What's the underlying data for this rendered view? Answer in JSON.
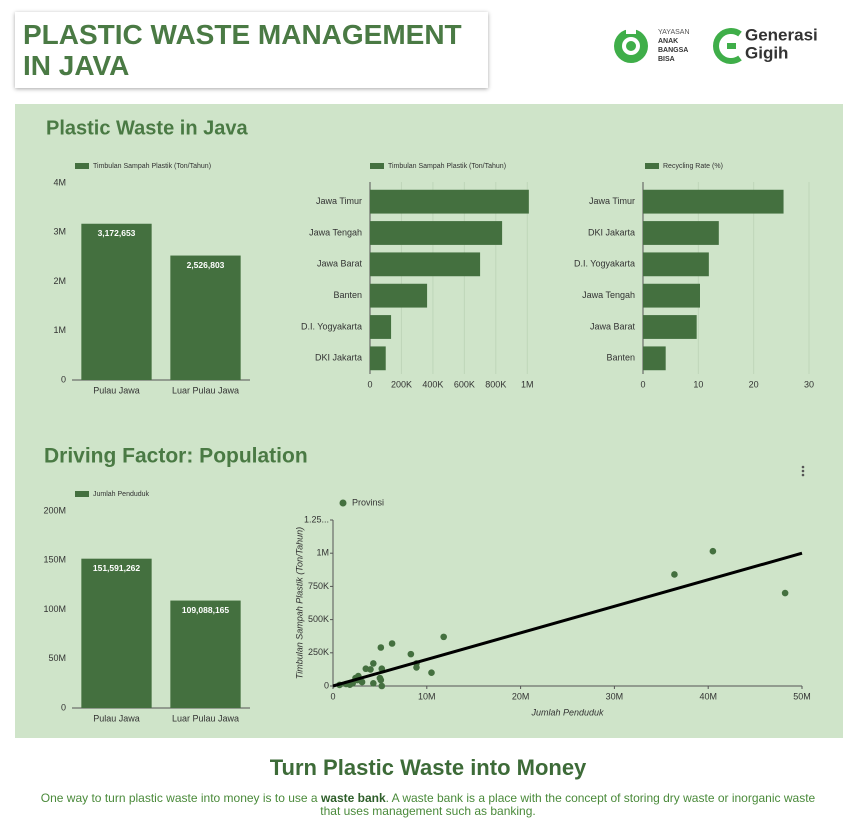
{
  "header": {
    "title_lines": [
      "PLASTIC WASTE MANAGEMENT",
      "IN JAVA"
    ],
    "logo_1_lines": [
      "YAYASAN",
      "ANAK",
      "BANGSA",
      "BISA"
    ],
    "logo_2_lines": [
      "Generasi",
      "Gigih"
    ]
  },
  "sections": [
    "Plastic Waste in Java",
    "Driving Factor: Population"
  ],
  "footer": {
    "title": "Turn Plastic Waste into Money",
    "text_before": "One way to turn plastic waste into money is to use a",
    "text_bold": "waste bank",
    "text_after": ". A waste bank is a place with the concept of storing dry waste or inorganic waste that uses management such as banking."
  },
  "chart_data": [
    {
      "type": "bar",
      "categories": [
        "Pulau Jawa",
        "Luar Pulau Jawa"
      ],
      "series": [
        {
          "name": "Timbulan Sampah Plastik (Ton/Tahun)",
          "color": "#44703f",
          "values": [
            3172653,
            2526803
          ],
          "value_labels": [
            "3,172,653",
            "2,526,803"
          ]
        }
      ],
      "ylim": [
        0,
        4000000
      ],
      "yticks": [
        0,
        {
          "value": 1000000,
          "label": "1M"
        },
        {
          "value": 2000000,
          "label": "2M"
        },
        {
          "value": 3000000,
          "label": "3M"
        },
        {
          "value": 4000000,
          "label": "4M"
        }
      ],
      "grid": false
    },
    {
      "type": "barh",
      "categories": [
        "Jawa Timur",
        "Jawa Tengah",
        "Jawa Barat",
        "Banten",
        "D.I. Yogyakarta",
        "DKI Jakarta"
      ],
      "series": [
        {
          "name": "Timbulan Sampah Plastik (Ton/Tahun)",
          "color": "#44703f",
          "values": [
            1010000,
            840000,
            700000,
            363000,
            134000,
            100000
          ]
        }
      ],
      "xlim": [
        0,
        1100000
      ],
      "xticks": [
        0,
        {
          "value": 200000,
          "label": "200K"
        },
        {
          "value": 400000,
          "label": "400K"
        },
        {
          "value": 600000,
          "label": "600K"
        },
        {
          "value": 800000,
          "label": "800K"
        },
        {
          "value": 1000000,
          "label": "1M"
        }
      ],
      "grid": true
    },
    {
      "type": "barh",
      "categories": [
        "Jawa Timur",
        "DKI Jakarta",
        "D.I. Yogyakarta",
        "Jawa Tengah",
        "Jawa Barat",
        "Banten"
      ],
      "series": [
        {
          "name": "Recycling Rate (%)",
          "color": "#44703f",
          "values": [
            25.4,
            13.7,
            11.9,
            10.3,
            9.7,
            4.1
          ]
        }
      ],
      "xlim": [
        0,
        30
      ],
      "xticks": [
        0,
        10,
        20,
        30
      ],
      "grid": true
    },
    {
      "type": "bar",
      "categories": [
        "Pulau Jawa",
        "Luar Pulau Jawa"
      ],
      "series": [
        {
          "name": "Jumlah Penduduk",
          "color": "#44703f",
          "values": [
            151591262,
            109088165
          ],
          "value_labels": [
            "151,591,262",
            "109,088,165"
          ]
        }
      ],
      "ylim": [
        0,
        200000000
      ],
      "yticks": [
        0,
        {
          "value": 50000000,
          "label": "50M"
        },
        {
          "value": 100000000,
          "label": "100M"
        },
        {
          "value": 150000000,
          "label": "150M"
        },
        {
          "value": 200000000,
          "label": "200M"
        }
      ],
      "grid": false
    },
    {
      "type": "scatter",
      "x_label": "Jumlah Penduduk",
      "y_label": "Timbulan Sampah Plastik (Ton/Tahun)",
      "series": [
        {
          "name": "Provinsi",
          "color": "#44703f",
          "x": [
            40500000,
            36400000,
            48200000,
            11800000,
            6300000,
            5100000,
            8300000,
            8900000,
            8900000,
            10500000,
            4300000,
            3500000,
            4000000,
            5200000,
            2700000,
            2600000,
            4300000,
            5100000,
            5200000,
            5000000,
            1400000,
            700000,
            2100000,
            3100000,
            2400000,
            1800000
          ],
          "values": [
            1015000,
            840000,
            700000,
            370000,
            320000,
            290000,
            240000,
            170000,
            140000,
            100000,
            170000,
            130000,
            125000,
            130000,
            75000,
            45000,
            20000,
            45000,
            0,
            60000,
            15000,
            8000,
            20000,
            30000,
            60000,
            10000
          ]
        }
      ],
      "trendline": {
        "color": "#000000",
        "x": [
          0,
          50000000
        ],
        "values": [
          0,
          1000000
        ]
      },
      "xlim": [
        0,
        50000000
      ],
      "xticks": [
        0,
        {
          "value": 10000000,
          "label": "10M"
        },
        {
          "value": 20000000,
          "label": "20M"
        },
        {
          "value": 30000000,
          "label": "30M"
        },
        {
          "value": 40000000,
          "label": "40M"
        },
        {
          "value": 50000000,
          "label": "50M"
        }
      ],
      "ylim": [
        0,
        1250000
      ],
      "yticks": [
        0,
        {
          "value": 250000,
          "label": "250K"
        },
        {
          "value": 500000,
          "label": "500K"
        },
        {
          "value": 750000,
          "label": "750K"
        },
        {
          "value": 1000000,
          "label": "1M"
        },
        {
          "value": 1250000,
          "label": "1.25..."
        }
      ],
      "grid": false
    }
  ]
}
